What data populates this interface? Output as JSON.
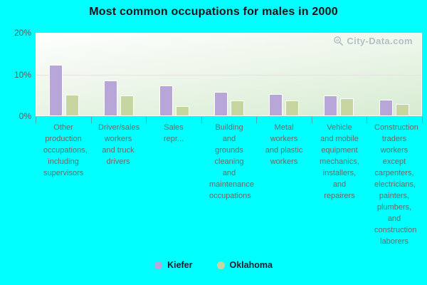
{
  "title": "Most common occupations for males in 2000",
  "watermark": {
    "text": "City-Data.com"
  },
  "y_axis": {
    "ticks": [
      {
        "label": "20%",
        "value": 20
      },
      {
        "label": "10%",
        "value": 10
      },
      {
        "label": "0%",
        "value": 0
      }
    ]
  },
  "colors": {
    "background": "#00ffff",
    "kiefer_bar": "#b9a6d9",
    "oklahoma_bar": "#c7d5a0",
    "bar_border": "#ffffff",
    "gridline": "#eadfe8",
    "title_text": "#131319",
    "axis_text": "#4f5f5f",
    "category_text": "#5d6d70",
    "legend_text": "#141c2e",
    "watermark_text": "#b4c0c8"
  },
  "chart_data": {
    "type": "bar",
    "title": "Most common occupations for males in 2000",
    "categories": [
      "Other production occupations, including supervisors",
      "Driver/sales workers and truck drivers",
      "Sales repr...",
      "Building and grounds cleaning and maintenance occupations",
      "Metal workers and plastic workers",
      "Vehicle and mobile equipment mechanics, installers, and repairers",
      "Construction traders workers except carpenters, electricians, painters, plumbers, and construction laborers"
    ],
    "series": [
      {
        "name": "Kiefer",
        "color": "#b9a6d9",
        "values": [
          12.4,
          8.6,
          7.3,
          5.8,
          5.3,
          4.9,
          3.9
        ]
      },
      {
        "name": "Oklahoma",
        "color": "#c7d5a0",
        "values": [
          5.0,
          4.9,
          2.3,
          3.7,
          3.6,
          4.1,
          2.7
        ]
      }
    ],
    "xlabel": "",
    "ylabel": "",
    "ylim": [
      0,
      20
    ],
    "yticks": [
      0,
      10,
      20
    ],
    "gridlines": [
      10
    ],
    "grid": "horizontal line at 10% only",
    "legend_position": "bottom"
  }
}
